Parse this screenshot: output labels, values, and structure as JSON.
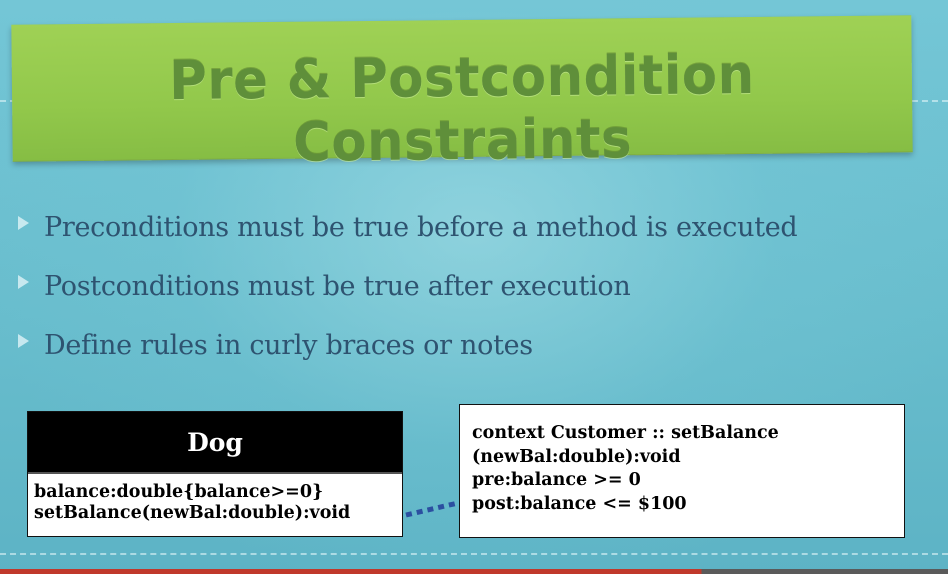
{
  "slide": {
    "title": "Pre & Postcondition Constraints",
    "bullets": [
      "Preconditions must be true before a method is executed",
      "Postconditions must be true after execution",
      "Define rules in curly braces or notes"
    ]
  },
  "uml_class": {
    "name": "Dog",
    "attributes": [
      "balance:double{balance>=0}",
      "setBalance(newBal:double):void"
    ]
  },
  "note": {
    "lines": [
      "context Customer :: setBalance",
      "(newBal:double):void",
      "pre:balance >= 0",
      "post:balance <= $100"
    ]
  },
  "colors": {
    "background": "#66bccd",
    "banner": "#92c84b",
    "title_text": "#5f8f3a",
    "bullet_text": "#2e5370",
    "class_header": "#000000"
  }
}
